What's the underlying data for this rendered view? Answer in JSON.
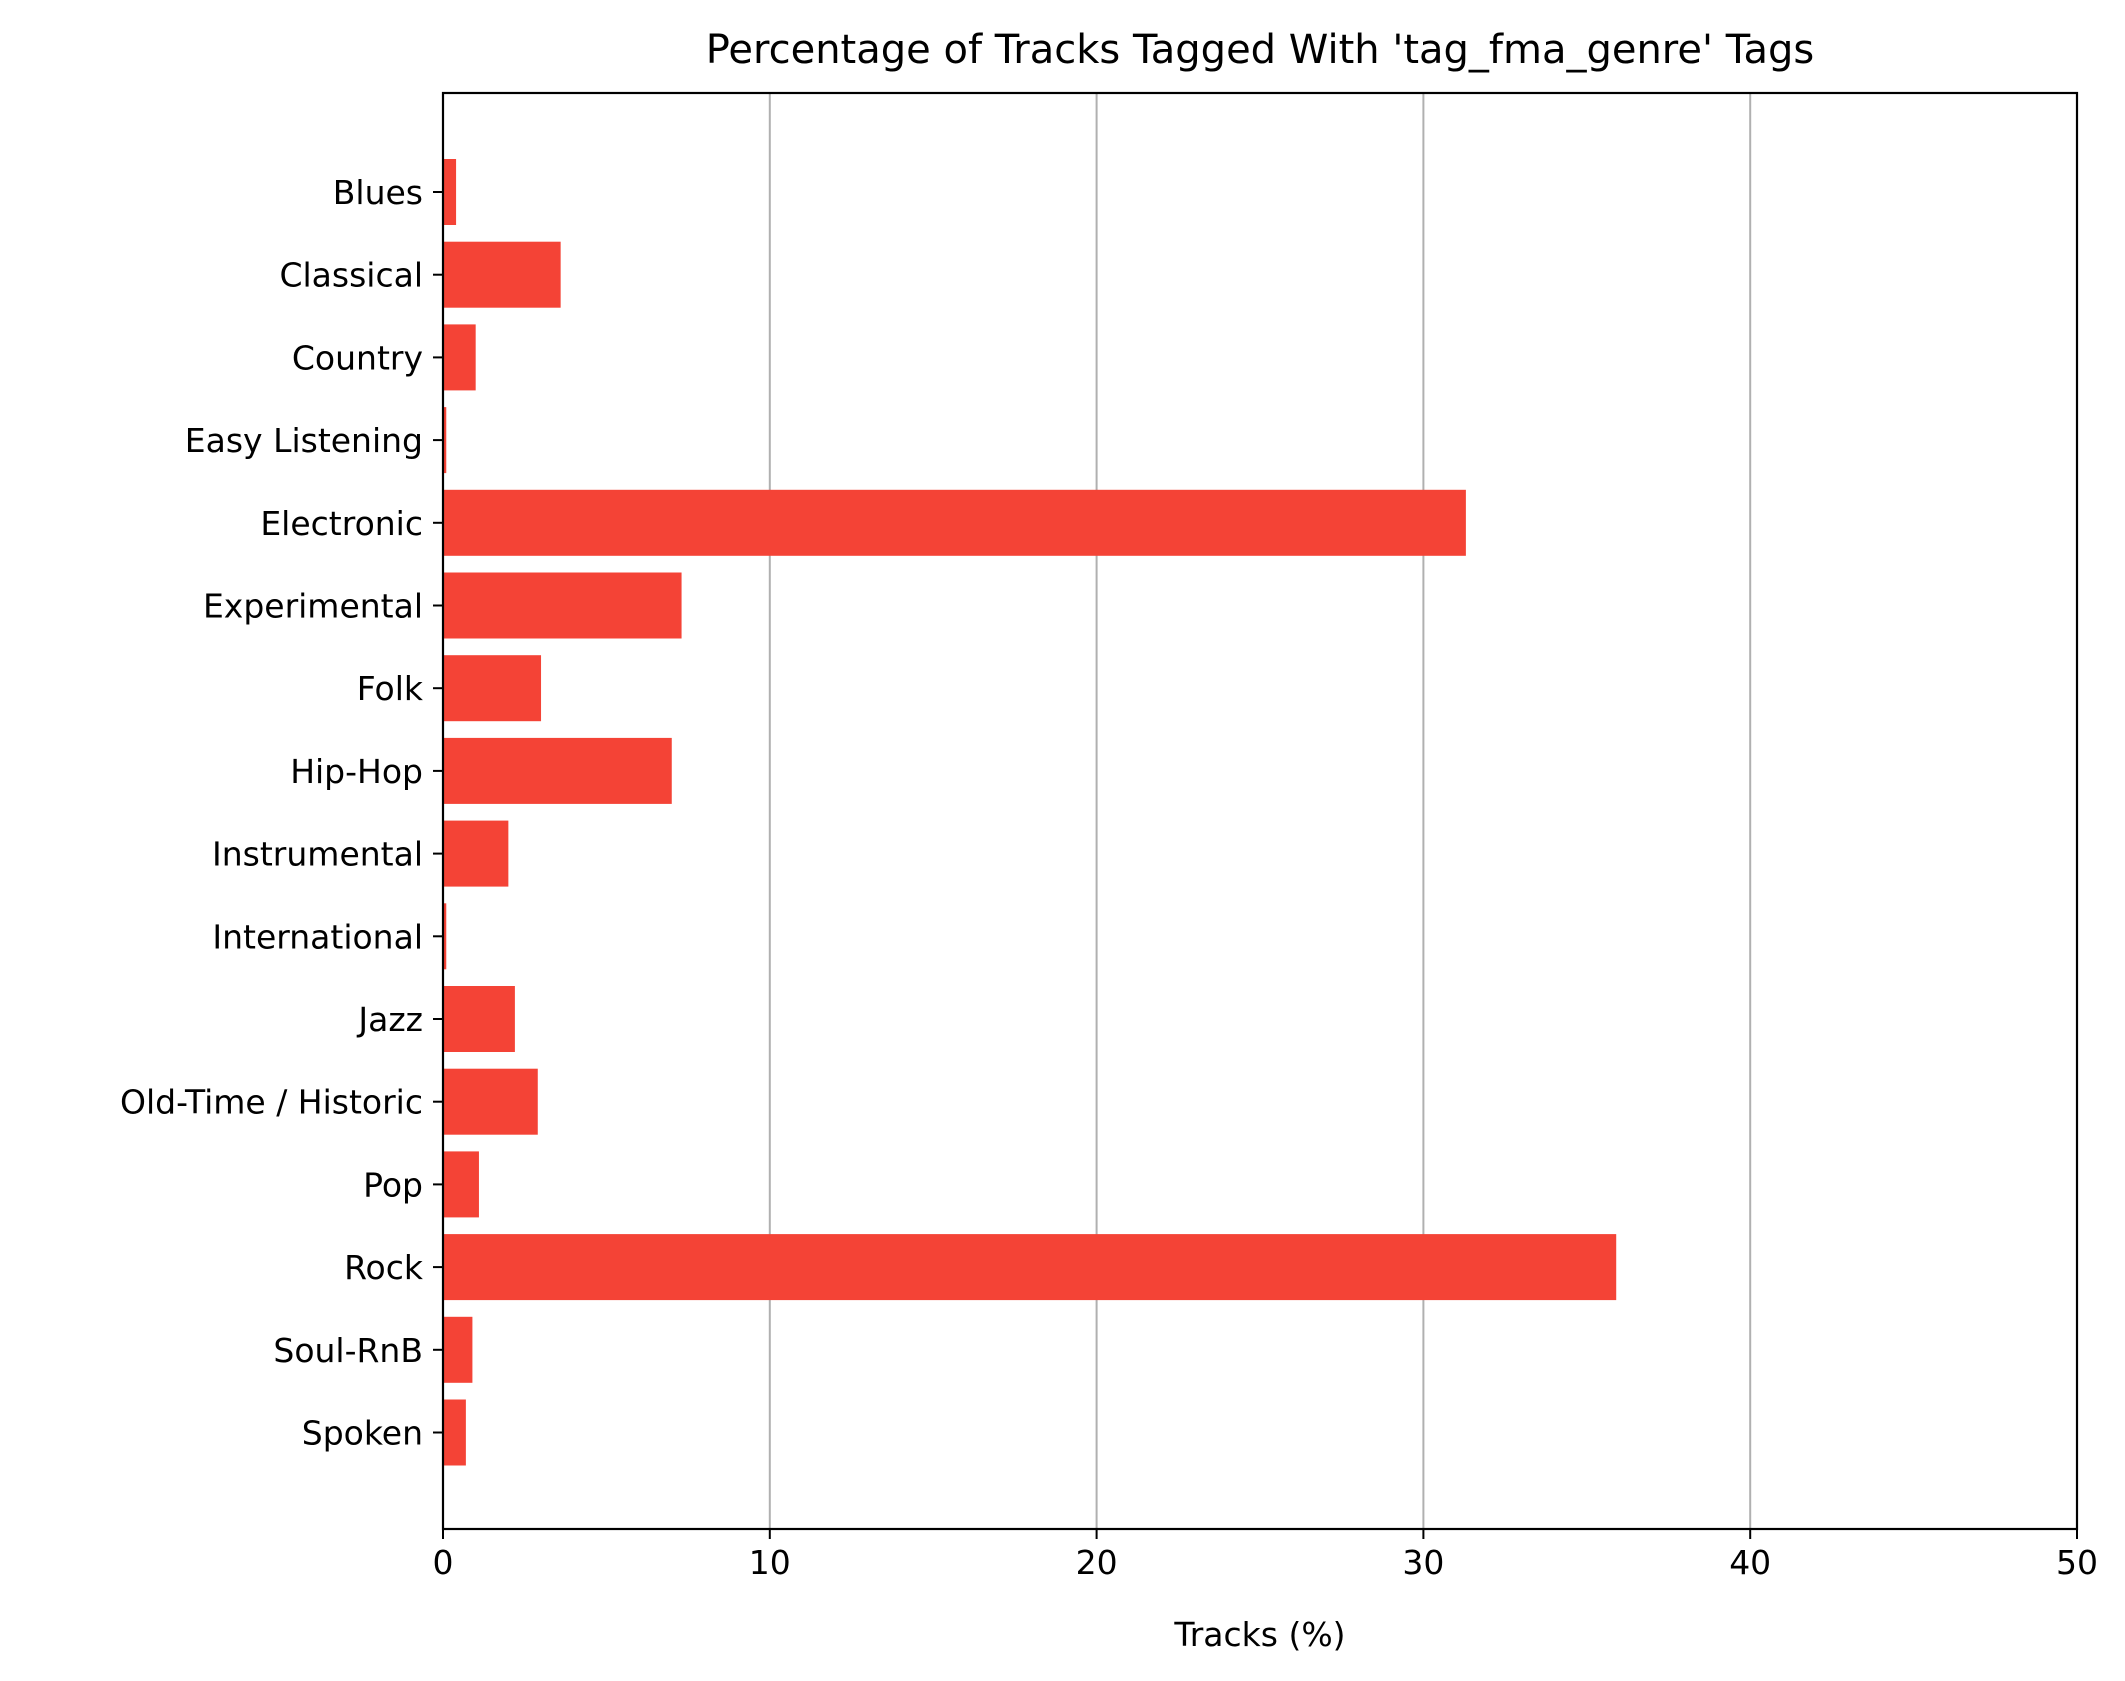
{
  "chart_data": {
    "type": "bar",
    "orientation": "horizontal",
    "title": "Percentage of Tracks Tagged With 'tag_fma_genre' Tags",
    "xlabel": "Tracks (%)",
    "ylabel": "",
    "xlim": [
      0,
      50
    ],
    "xticks": [
      0,
      10,
      20,
      30,
      40,
      50
    ],
    "grid": "vertical",
    "legend": "none",
    "bar_color": "#f44336",
    "categories": [
      "Blues",
      "Classical",
      "Country",
      "Easy Listening",
      "Electronic",
      "Experimental",
      "Folk",
      "Hip-Hop",
      "Instrumental",
      "International",
      "Jazz",
      "Old-Time / Historic",
      "Pop",
      "Rock",
      "Soul-RnB",
      "Spoken"
    ],
    "values": [
      0.4,
      3.6,
      1.0,
      0.1,
      31.3,
      7.3,
      3.0,
      7.0,
      2.0,
      0.1,
      2.2,
      2.9,
      1.1,
      35.9,
      0.9,
      0.7
    ]
  }
}
